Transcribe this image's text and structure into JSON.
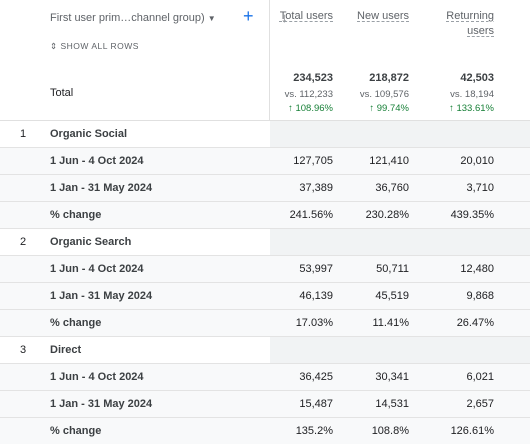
{
  "header": {
    "dimension": "First user prim…channel group)",
    "show_all": "SHOW ALL ROWS",
    "columns": [
      "Total users",
      "New users",
      "Returning users"
    ]
  },
  "total": {
    "label": "Total",
    "values": [
      "234,523",
      "218,872",
      "42,503"
    ],
    "compare": [
      "vs. 112,233",
      "vs. 109,576",
      "vs. 18,194"
    ],
    "change": [
      "108.96%",
      "99.74%",
      "133.61%"
    ]
  },
  "groups": [
    {
      "index": "1",
      "name": "Organic Social",
      "rows": [
        {
          "label": "1 Jun - 4 Oct 2024",
          "values": [
            "127,705",
            "121,410",
            "20,010"
          ]
        },
        {
          "label": "1 Jan - 31 May 2024",
          "values": [
            "37,389",
            "36,760",
            "3,710"
          ]
        },
        {
          "label": "% change",
          "values": [
            "241.56%",
            "230.28%",
            "439.35%"
          ]
        }
      ]
    },
    {
      "index": "2",
      "name": "Organic Search",
      "rows": [
        {
          "label": "1 Jun - 4 Oct 2024",
          "values": [
            "53,997",
            "50,711",
            "12,480"
          ]
        },
        {
          "label": "1 Jan - 31 May 2024",
          "values": [
            "46,139",
            "45,519",
            "9,868"
          ]
        },
        {
          "label": "% change",
          "values": [
            "17.03%",
            "11.41%",
            "26.47%"
          ]
        }
      ]
    },
    {
      "index": "3",
      "name": "Direct",
      "rows": [
        {
          "label": "1 Jun - 4 Oct 2024",
          "values": [
            "36,425",
            "30,341",
            "6,021"
          ]
        },
        {
          "label": "1 Jan - 31 May 2024",
          "values": [
            "15,487",
            "14,531",
            "2,657"
          ]
        },
        {
          "label": "% change",
          "values": [
            "135.2%",
            "108.8%",
            "126.61%"
          ]
        }
      ]
    }
  ]
}
